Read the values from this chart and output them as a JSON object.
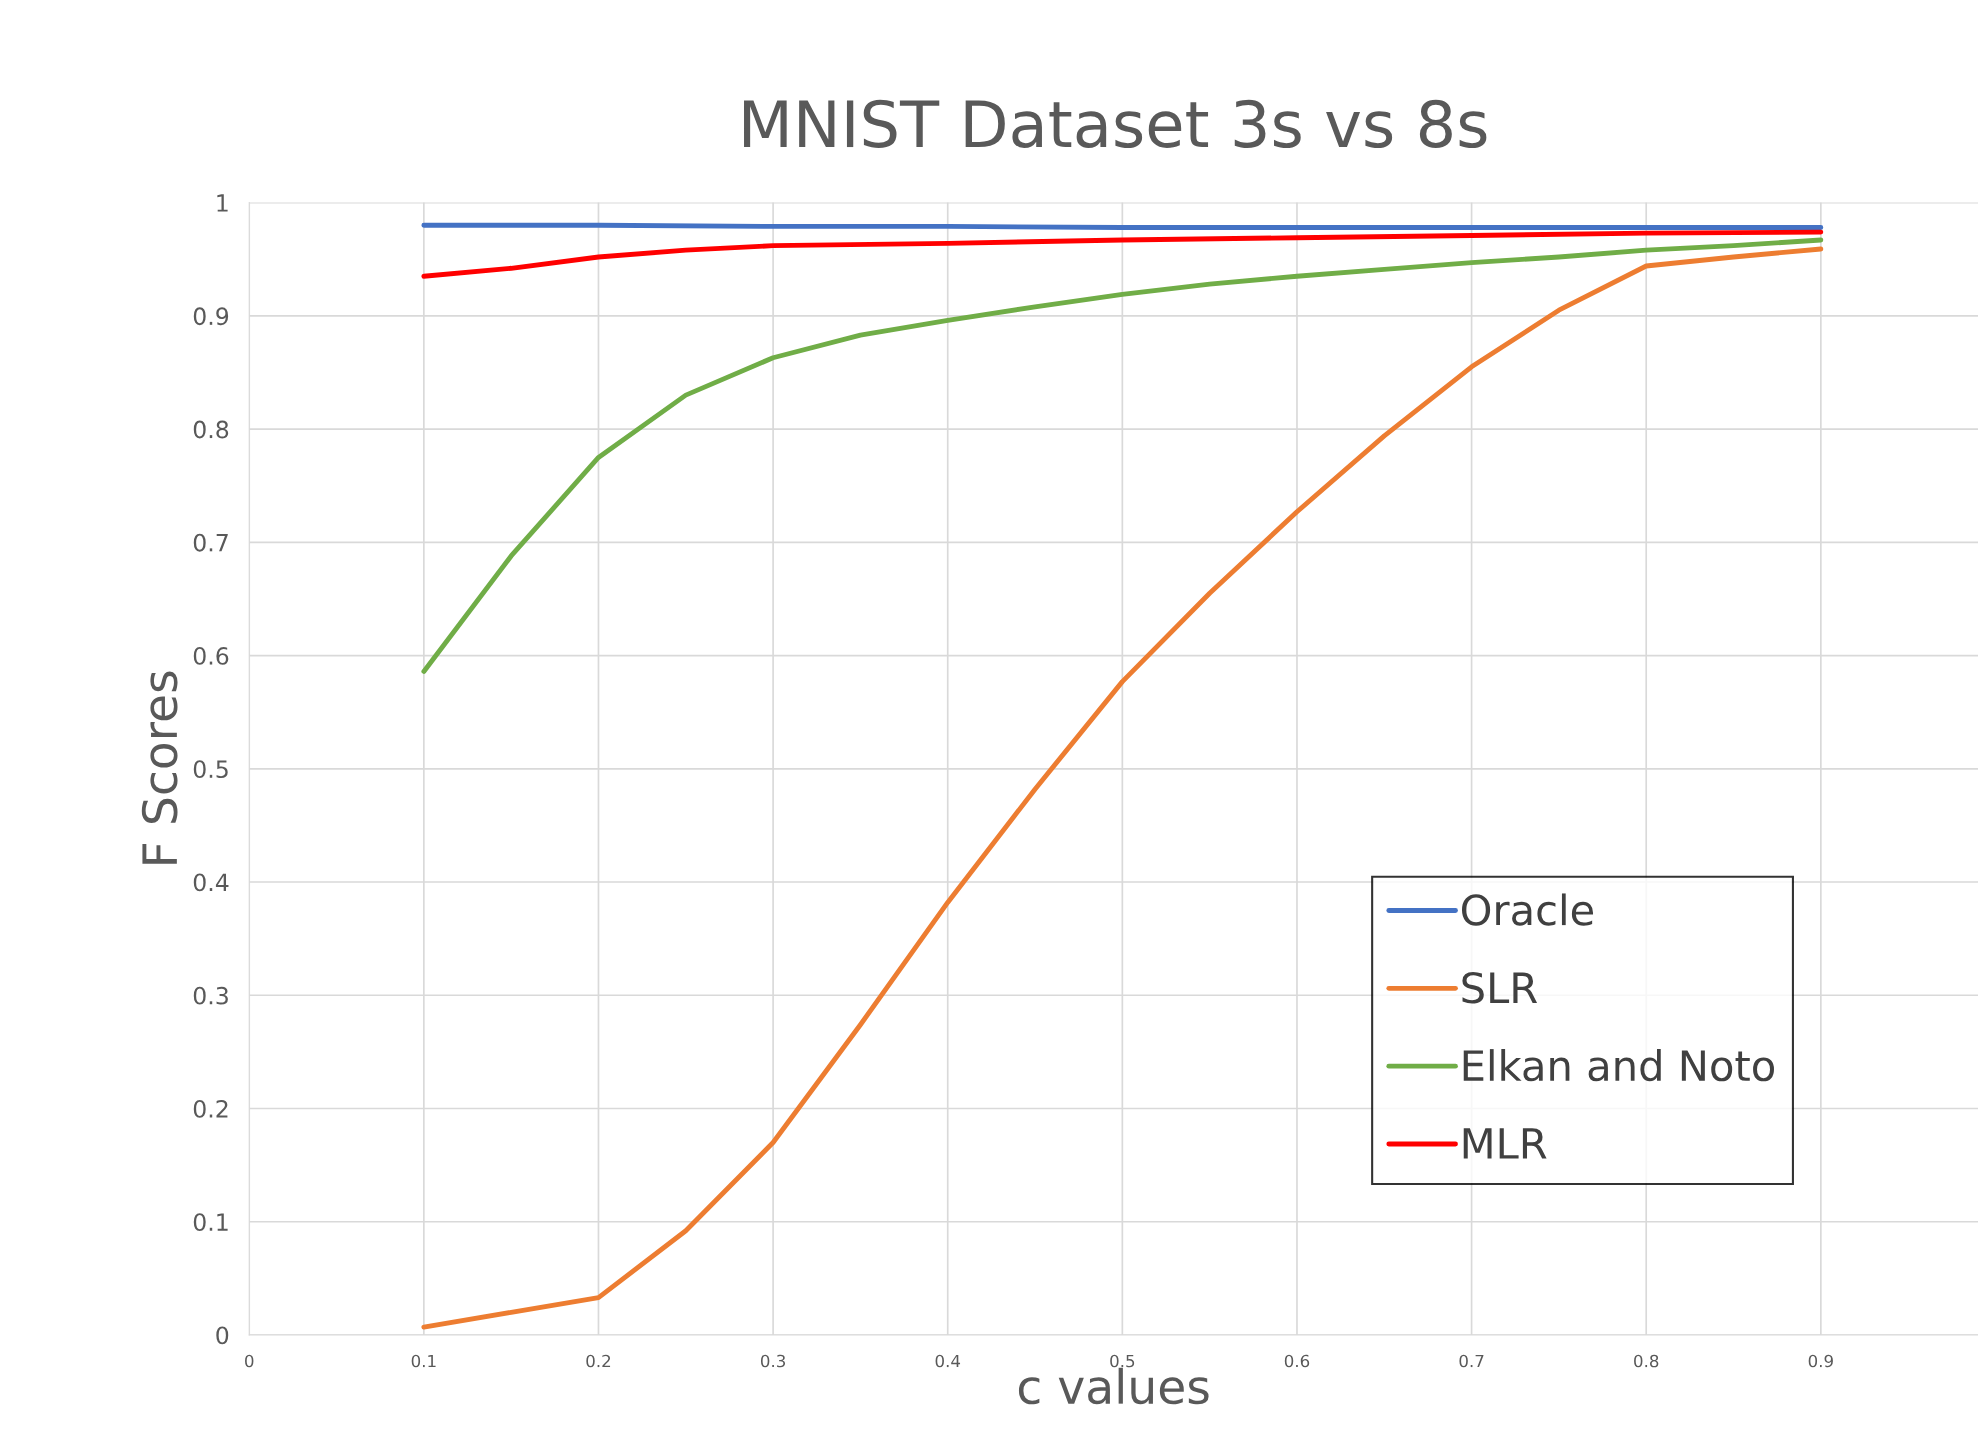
{
  "chart_data": {
    "type": "line",
    "title": "MNIST Dataset 3s vs 8s",
    "xlabel": "c values",
    "ylabel": "F Scores",
    "x": [
      0.1,
      0.2,
      0.3,
      0.4,
      0.5,
      0.6,
      0.7,
      0.8,
      0.9
    ],
    "series": [
      {
        "name": "Oracle",
        "color": "#4472c4",
        "values": [
          0.98,
          0.98,
          0.979,
          0.979,
          0.978,
          0.978,
          0.978,
          0.978,
          0.978
        ]
      },
      {
        "name": "SLR",
        "color": "#ed7d31",
        "x": [
          0.1,
          0.15,
          0.2,
          0.25,
          0.3,
          0.35,
          0.4,
          0.45,
          0.5,
          0.55,
          0.6,
          0.65,
          0.7,
          0.75,
          0.8,
          0.85,
          0.9
        ],
        "values": [
          0.007,
          0.02,
          0.033,
          0.092,
          0.17,
          0.274,
          0.382,
          0.482,
          0.577,
          0.655,
          0.727,
          0.794,
          0.855,
          0.905,
          0.944,
          0.952,
          0.959
        ]
      },
      {
        "name": "Elkan and Noto",
        "color": "#70ad47",
        "x": [
          0.1,
          0.15,
          0.2,
          0.25,
          0.3,
          0.35,
          0.4,
          0.45,
          0.5,
          0.55,
          0.6,
          0.65,
          0.7,
          0.75,
          0.8,
          0.85,
          0.9
        ],
        "values": [
          0.586,
          0.688,
          0.775,
          0.83,
          0.863,
          0.883,
          0.896,
          0.908,
          0.919,
          0.928,
          0.935,
          0.941,
          0.947,
          0.952,
          0.958,
          0.962,
          0.967
        ]
      },
      {
        "name": "MLR",
        "color": "#ff0000",
        "x": [
          0.1,
          0.15,
          0.2,
          0.25,
          0.3,
          0.4,
          0.5,
          0.6,
          0.7,
          0.8,
          0.9
        ],
        "values": [
          0.935,
          0.942,
          0.952,
          0.958,
          0.962,
          0.964,
          0.967,
          0.969,
          0.971,
          0.973,
          0.974
        ]
      }
    ],
    "xlim": [
      0,
      0.99
    ],
    "xticks": [
      0,
      0.1,
      0.2,
      0.3,
      0.4,
      0.5,
      0.6,
      0.7,
      0.8,
      0.9
    ],
    "ylim": [
      0,
      1
    ],
    "yticks": [
      0,
      0.1,
      0.2,
      0.3,
      0.4,
      0.5,
      0.6,
      0.7,
      0.8,
      0.9,
      1
    ],
    "grid": true,
    "legend": "bottom right",
    "marker": "none",
    "line_style": "solid"
  }
}
